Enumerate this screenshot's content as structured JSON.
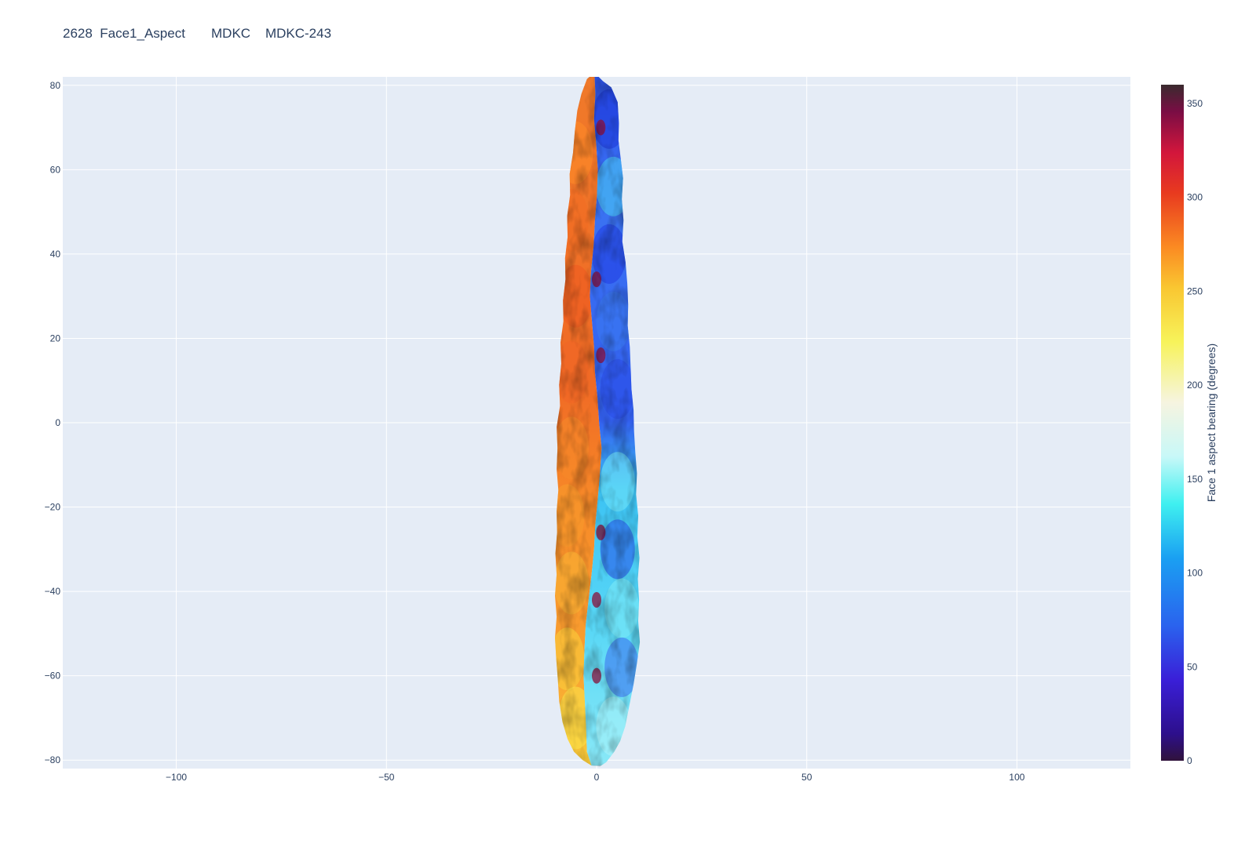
{
  "title": "2628  Face1_Aspect       MDKC    MDKC-243",
  "chart_data": {
    "type": "heatmap",
    "title": "2628  Face1_Aspect       MDKC    MDKC-243",
    "xlabel": "",
    "ylabel": "",
    "xlim": [
      -127,
      127
    ],
    "ylim": [
      -82,
      82
    ],
    "xticks": [
      -100,
      -50,
      0,
      50,
      100
    ],
    "yticks": [
      80,
      60,
      40,
      20,
      0,
      -20,
      -40,
      -60,
      -80
    ],
    "grid": true,
    "colorbar": {
      "title": "Face 1 aspect bearing (degrees)",
      "range": [
        0,
        360
      ],
      "ticks": [
        0,
        50,
        100,
        150,
        200,
        250,
        300,
        350
      ],
      "colorscale": [
        [
          0.0,
          "#30123b"
        ],
        [
          0.04,
          "#2d0f8c"
        ],
        [
          0.12,
          "#3a1fd8"
        ],
        [
          0.2,
          "#2a63ee"
        ],
        [
          0.3,
          "#1aa0f2"
        ],
        [
          0.38,
          "#3ff0f0"
        ],
        [
          0.45,
          "#c8f8f8"
        ],
        [
          0.53,
          "#f6f4e0"
        ],
        [
          0.62,
          "#f7f35a"
        ],
        [
          0.7,
          "#f9c631"
        ],
        [
          0.76,
          "#fb8a22"
        ],
        [
          0.84,
          "#e83a1f"
        ],
        [
          0.9,
          "#d2163c"
        ],
        [
          0.96,
          "#7a0d44"
        ],
        [
          1.0,
          "#3a2a2e"
        ]
      ]
    },
    "artifact": {
      "outline": [
        [
          -0.5,
          83
        ],
        [
          1.5,
          81
        ],
        [
          3.5,
          79.5
        ],
        [
          5,
          76
        ],
        [
          5.3,
          71
        ],
        [
          5.2,
          67
        ],
        [
          5.7,
          63
        ],
        [
          6.3,
          58
        ],
        [
          6,
          53
        ],
        [
          6.4,
          48
        ],
        [
          6.1,
          43
        ],
        [
          6.9,
          38
        ],
        [
          7.3,
          33
        ],
        [
          7.5,
          28
        ],
        [
          7.4,
          23
        ],
        [
          7.9,
          18
        ],
        [
          8.1,
          13
        ],
        [
          8.3,
          8
        ],
        [
          8.8,
          3
        ],
        [
          8.9,
          -2
        ],
        [
          9.2,
          -7
        ],
        [
          9.6,
          -12
        ],
        [
          9.4,
          -17
        ],
        [
          9.9,
          -22
        ],
        [
          9.7,
          -27
        ],
        [
          10.2,
          -32
        ],
        [
          9.8,
          -37
        ],
        [
          10.1,
          -42
        ],
        [
          9.9,
          -47
        ],
        [
          10.3,
          -52
        ],
        [
          9.6,
          -57
        ],
        [
          8.8,
          -62
        ],
        [
          7.8,
          -67
        ],
        [
          6.8,
          -72
        ],
        [
          5.6,
          -75.5
        ],
        [
          4.2,
          -78
        ],
        [
          2.3,
          -80.5
        ],
        [
          0.8,
          -81.5
        ],
        [
          -1.2,
          -81.3
        ],
        [
          -3.3,
          -80
        ],
        [
          -5.4,
          -78
        ],
        [
          -6.9,
          -75
        ],
        [
          -8.1,
          -71
        ],
        [
          -8.9,
          -66
        ],
        [
          -9.2,
          -61
        ],
        [
          -9.6,
          -56
        ],
        [
          -9.9,
          -51
        ],
        [
          -9.5,
          -46
        ],
        [
          -9.9,
          -41
        ],
        [
          -9.5,
          -36
        ],
        [
          -9.8,
          -31
        ],
        [
          -9.4,
          -26
        ],
        [
          -9.5,
          -21
        ],
        [
          -9.1,
          -16
        ],
        [
          -9.5,
          -11
        ],
        [
          -9.3,
          -6
        ],
        [
          -9.5,
          -1
        ],
        [
          -8.7,
          4
        ],
        [
          -8.9,
          9
        ],
        [
          -8.4,
          14
        ],
        [
          -8.6,
          19
        ],
        [
          -7.9,
          24
        ],
        [
          -8.0,
          29
        ],
        [
          -7.4,
          34
        ],
        [
          -7.5,
          39
        ],
        [
          -6.9,
          44
        ],
        [
          -7.0,
          49
        ],
        [
          -6.3,
          54
        ],
        [
          -6.4,
          59
        ],
        [
          -5.6,
          64
        ],
        [
          -5.2,
          69
        ],
        [
          -4.6,
          74
        ],
        [
          -3.6,
          78
        ],
        [
          -2.3,
          81.5
        ]
      ],
      "ridge": [
        [
          -0.5,
          83
        ],
        [
          -0.3,
          78
        ],
        [
          -0.6,
          72
        ],
        [
          -0.1,
          66
        ],
        [
          0.3,
          60
        ],
        [
          0.1,
          54
        ],
        [
          -0.4,
          48
        ],
        [
          -0.7,
          42
        ],
        [
          -1.3,
          36
        ],
        [
          -1.6,
          30
        ],
        [
          -1.1,
          24
        ],
        [
          -0.6,
          18
        ],
        [
          -0.4,
          12
        ],
        [
          0.2,
          6
        ],
        [
          0.6,
          0
        ],
        [
          1.2,
          -6
        ],
        [
          0.8,
          -12
        ],
        [
          0.3,
          -18
        ],
        [
          -0.3,
          -24
        ],
        [
          -0.6,
          -30
        ],
        [
          -1.2,
          -36
        ],
        [
          -1.9,
          -42
        ],
        [
          -2.6,
          -48
        ],
        [
          -2.9,
          -54
        ],
        [
          -3.1,
          -60
        ],
        [
          -2.8,
          -66
        ],
        [
          -2.5,
          -72
        ],
        [
          -2.3,
          -78
        ],
        [
          -1.2,
          -81.3
        ]
      ]
    }
  }
}
